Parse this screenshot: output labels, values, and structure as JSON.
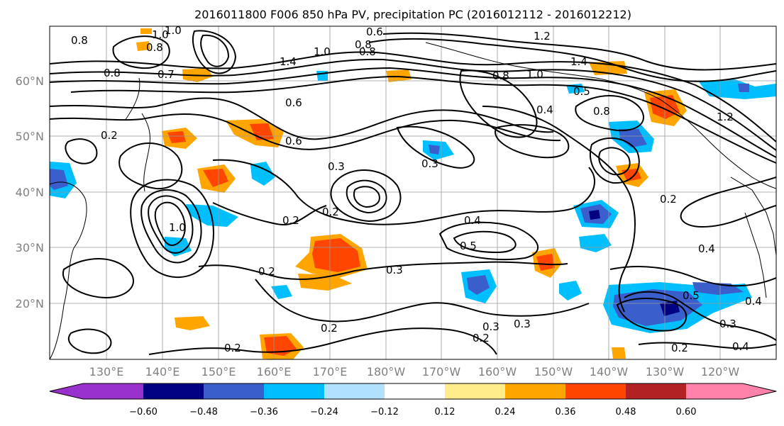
{
  "title": "2016011800 F006 850 hPa PV, precipitation PC (2016012112 - 2016012212)",
  "map": {
    "lat_labels": [
      "60°N",
      "50°N",
      "40°N",
      "30°N",
      "20°N"
    ],
    "lon_labels": [
      "130°E",
      "140°E",
      "150°E",
      "160°E",
      "170°E",
      "180°W",
      "170°W",
      "160°W",
      "150°W",
      "140°W",
      "130°W",
      "120°W"
    ],
    "coastline_color": "#000000",
    "grid_color": "#9a9a9a"
  },
  "colorbar": {
    "ticks": [
      "−0.60",
      "−0.48",
      "−0.36",
      "−0.24",
      "−0.12",
      "0.12",
      "0.24",
      "0.36",
      "0.48",
      "0.60"
    ],
    "colors": [
      "#9932cc",
      "#000080",
      "#3a5fcd",
      "#00bfff",
      "#b0e2ff",
      "#ffffff",
      "#ffec8b",
      "#ffa500",
      "#ff4500",
      "#b22222",
      "#ff82ab"
    ]
  },
  "contour_labels": [
    "0.8",
    "1.0",
    "0.8",
    "0.7",
    "0.8",
    "1.0",
    "1.4",
    "1.0",
    "0.8",
    "0.6",
    "0.8",
    "1.2",
    "1.4",
    "0.8",
    "1.0",
    "0.5",
    "0.8",
    "0.4",
    "0.6",
    "0.6",
    "0.2",
    "0.3",
    "0.3",
    "0.2",
    "0.4",
    "0.5",
    "0.3",
    "0.2",
    "0.3",
    "0.2",
    "0.3",
    "0.2",
    "0.2",
    "0.4",
    "0.2",
    "0.4",
    "0.5",
    "0.4",
    "1.0",
    "0.2",
    "0.2",
    "0.3",
    "1.2"
  ]
}
